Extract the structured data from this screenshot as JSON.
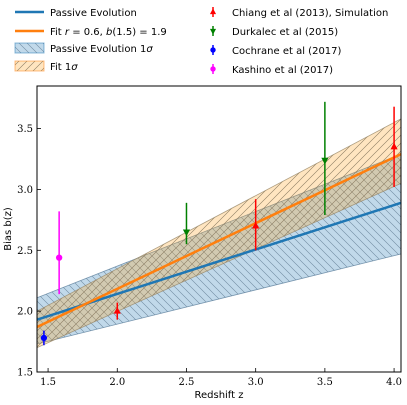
{
  "chart_data": {
    "type": "line",
    "xlabel": "Redshift z",
    "ylabel": "Bias b(z)",
    "xlim": [
      1.42,
      4.05
    ],
    "ylim": [
      1.5,
      3.85
    ],
    "x_ticks": [
      "1.5",
      "2.0",
      "2.5",
      "3.0",
      "3.5",
      "4.0"
    ],
    "y_ticks": [
      "1.5",
      "2.0",
      "2.5",
      "3.0",
      "3.5"
    ],
    "grid": false,
    "legend_position": "top",
    "lines": [
      {
        "name": "Passive Evolution",
        "color": "#1f77b4",
        "x": [
          1.42,
          4.05
        ],
        "y": [
          1.93,
          2.89
        ]
      },
      {
        "name": "Fit r = 0.6, b(1.5) = 1.9",
        "color": "#ff7f0e",
        "x": [
          1.42,
          4.05
        ],
        "y": [
          1.87,
          3.29
        ]
      }
    ],
    "bands": [
      {
        "name": "Passive Evolution 1σ",
        "color": "#1f77b4",
        "hatch": "\\\\",
        "x": [
          1.42,
          4.05
        ],
        "lower": [
          1.73,
          2.47
        ],
        "upper": [
          2.11,
          3.29
        ]
      },
      {
        "name": "Fit 1σ",
        "color": "#ff7f0e",
        "hatch": "//",
        "x": [
          1.42,
          4.05
        ],
        "lower": [
          1.7,
          3.05
        ],
        "upper": [
          2.0,
          3.58
        ]
      }
    ],
    "points": [
      {
        "name": "Chiang et al (2013), Simulation",
        "color": "#ff0000",
        "marker": "triangle-up",
        "x": [
          2.0,
          3.0,
          4.0
        ],
        "y": [
          2.0,
          2.7,
          3.35
        ],
        "yerr_low": [
          0.07,
          0.2,
          0.33
        ],
        "yerr_high": [
          0.07,
          0.22,
          0.33
        ]
      },
      {
        "name": "Durkalec et al (2015)",
        "color": "#008000",
        "marker": "triangle-down",
        "x": [
          2.5,
          3.5
        ],
        "y": [
          2.65,
          3.24
        ],
        "yerr_low": [
          0.1,
          0.45
        ],
        "yerr_high": [
          0.24,
          0.48
        ]
      },
      {
        "name": "Cochrane et al (2017)",
        "color": "#0000ff",
        "marker": "circle",
        "x": [
          1.47
        ],
        "y": [
          1.78
        ],
        "yerr_low": [
          0.06
        ],
        "yerr_high": [
          0.06
        ]
      },
      {
        "name": "Kashino et al (2017)",
        "color": "#ff00ff",
        "marker": "circle",
        "x": [
          1.58
        ],
        "y": [
          2.44
        ],
        "yerr_low": [
          0.3
        ],
        "yerr_high": [
          0.38
        ]
      }
    ]
  }
}
